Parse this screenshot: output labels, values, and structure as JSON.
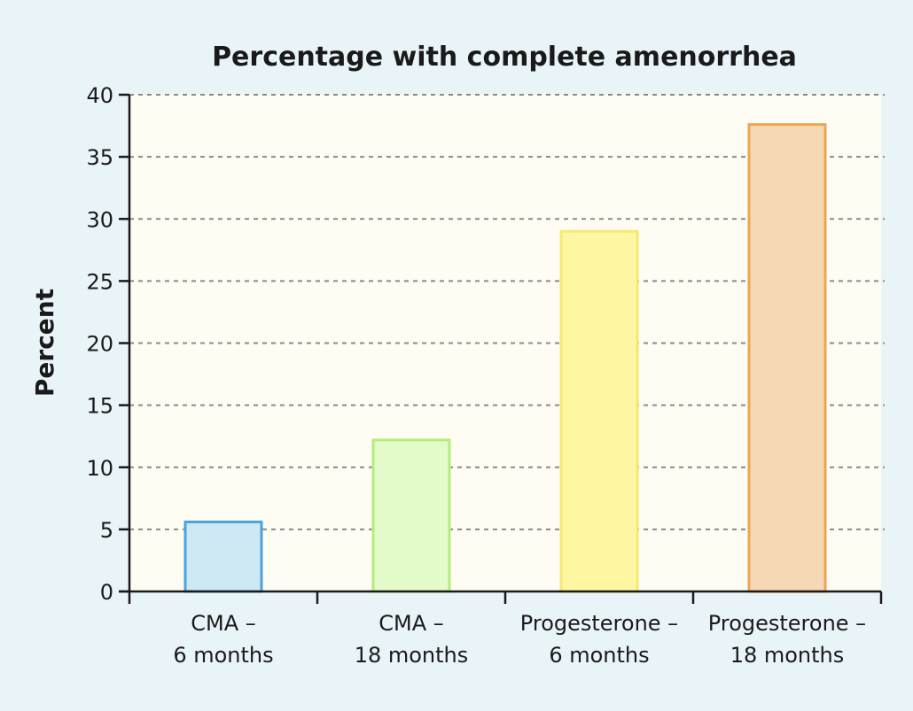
{
  "chart_data": {
    "type": "bar",
    "title": "Percentage with complete amenorrhea",
    "xlabel": "",
    "ylabel": "Percent",
    "ylim": [
      0,
      40
    ],
    "yticks": [
      0,
      5,
      10,
      15,
      20,
      25,
      30,
      35,
      40
    ],
    "grid": true,
    "categories": [
      [
        "CMA –",
        "6 months"
      ],
      [
        "CMA –",
        "18 months"
      ],
      [
        "Progesterone –",
        "6 months"
      ],
      [
        "Progesterone –",
        "18 months"
      ]
    ],
    "values": [
      5.6,
      12.2,
      29.0,
      37.6
    ],
    "colors": {
      "fills": [
        "#cde8f3",
        "#e2fbc8",
        "#fff6a2",
        "#f7d8b4"
      ],
      "strokes": [
        "#4aa3de",
        "#b6ec7c",
        "#f6e874",
        "#eea454"
      ],
      "plot_background": "#fffdf3",
      "page_background": "#e9f4f9",
      "grid": "#8a8a8a",
      "axis": "#1a1a1a"
    }
  }
}
